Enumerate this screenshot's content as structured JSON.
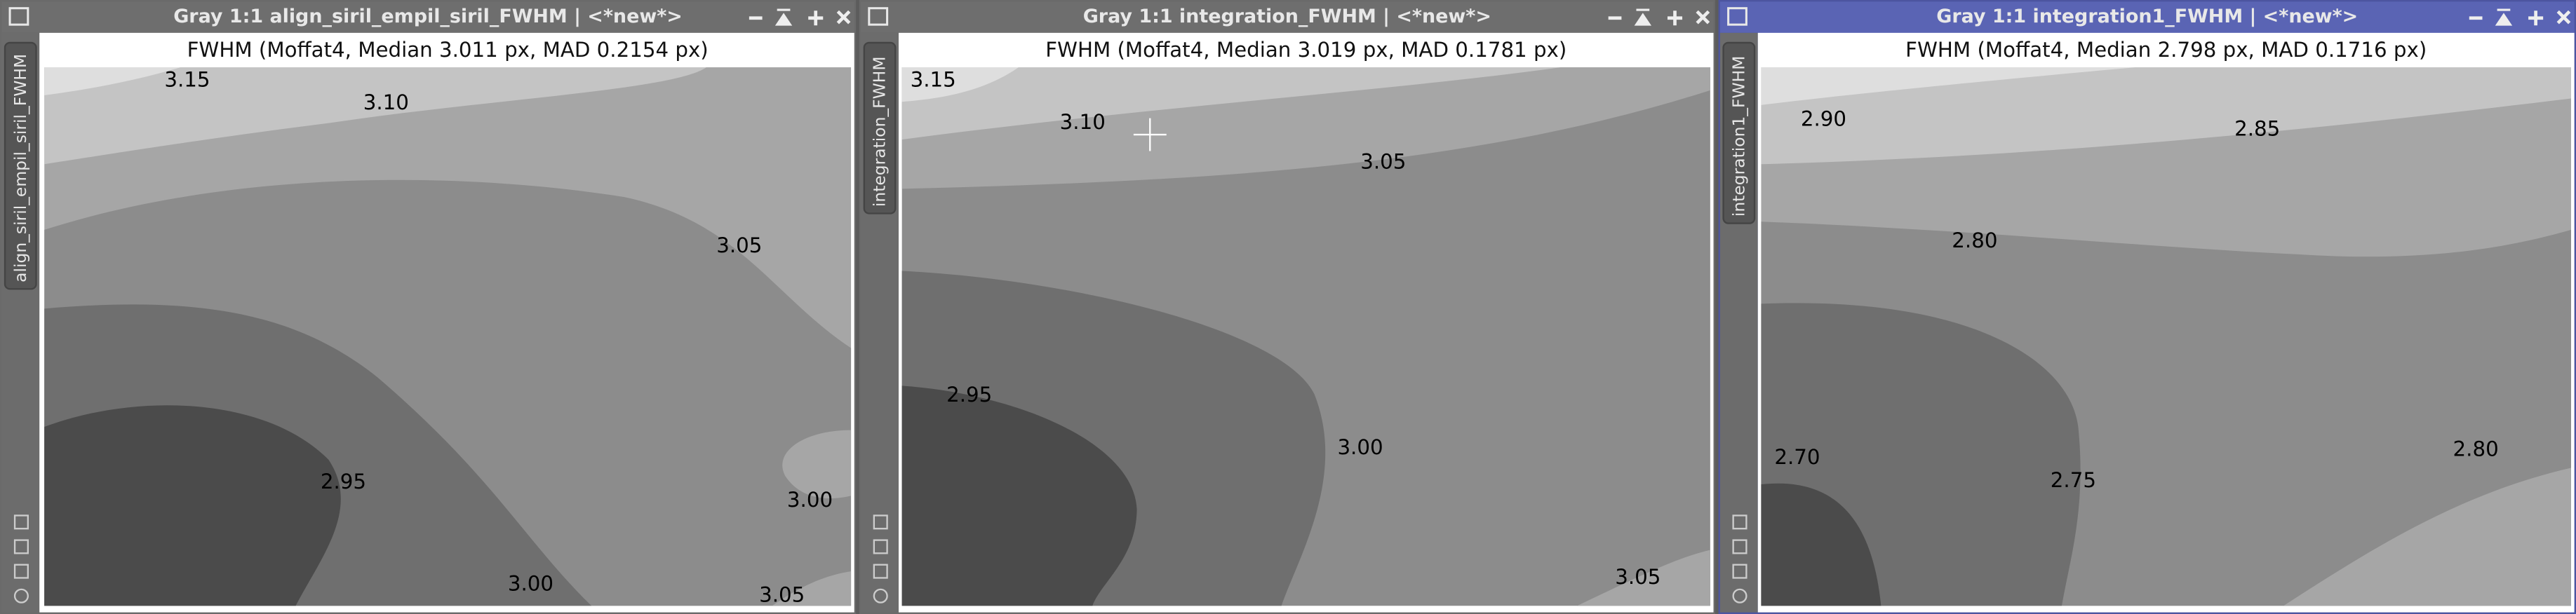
{
  "windows": [
    {
      "title": "Gray 1:1 align_siril_empil_siril_FWHM | <*new*>",
      "tab": "align_siril_empil_siril_FWHM",
      "plot_title": "FWHM (Moffat4, Median 3.011 px, MAD 0.2154 px)",
      "contour_labels": [
        "3.15",
        "3.10",
        "3.05",
        "2.95",
        "3.00",
        "3.00",
        "3.05"
      ]
    },
    {
      "title": "Gray 1:1 integration_FWHM | <*new*>",
      "tab": "integration_FWHM",
      "plot_title": "FWHM (Moffat4, Median 3.019 px, MAD 0.1781 px)",
      "contour_labels": [
        "3.15",
        "3.10",
        "3.05",
        "2.95",
        "3.00",
        "3.05"
      ]
    },
    {
      "title": "Gray 1:1 integration1_FWHM | <*new*>",
      "tab": "integration1_FWHM",
      "plot_title": "FWHM (Moffat4, Median 2.798 px, MAD 0.1716 px)",
      "contour_labels": [
        "2.90",
        "2.85",
        "2.80",
        "2.70",
        "2.75",
        "2.80"
      ]
    }
  ]
}
